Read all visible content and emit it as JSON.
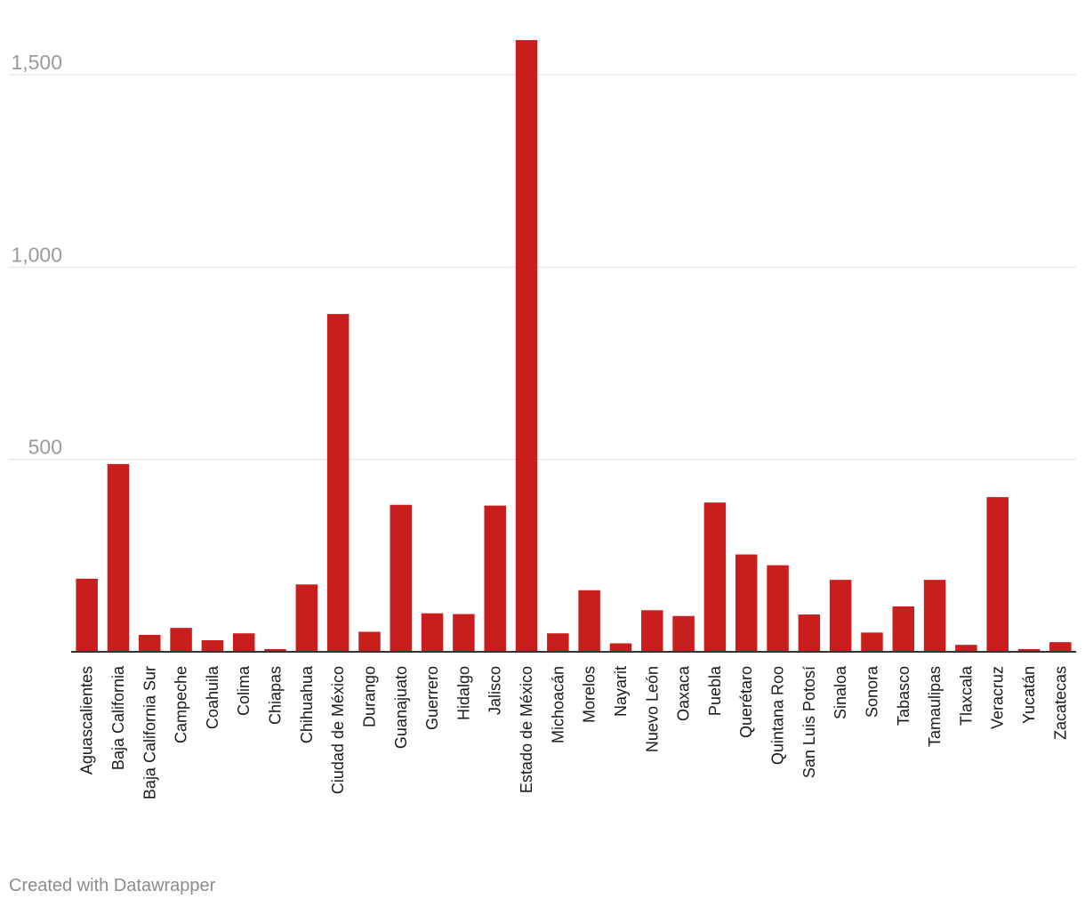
{
  "chart_data": {
    "type": "bar",
    "title": "",
    "xlabel": "",
    "ylabel": "",
    "ylim": [
      0,
      1600
    ],
    "yticks": [
      500,
      1000,
      1500
    ],
    "ytick_labels": [
      "500",
      "1,000",
      "1,500"
    ],
    "grid": true,
    "colors": {
      "bar": "#c81e1e"
    },
    "categories": [
      "Aguascalientes",
      "Baja California",
      "Baja California Sur",
      "Campeche",
      "Coahuila",
      "Colima",
      "Chiapas",
      "Chihuahua",
      "Ciudad de México",
      "Durango",
      "Guanajuato",
      "Guerrero",
      "Hidalgo",
      "Jalisco",
      "Estado de México",
      "Michoacán",
      "Morelos",
      "Nayarit",
      "Nuevo León",
      "Oaxaca",
      "Puebla",
      "Querétaro",
      "Quintana Roo",
      "San Luis Potosí",
      "Sinaloa",
      "Sonora",
      "Tabasco",
      "Tamaulipas",
      "Tlaxcala",
      "Veracruz",
      "Yucatán",
      "Zacatecas"
    ],
    "values": [
      190,
      488,
      44,
      62,
      30,
      48,
      7,
      175,
      878,
      52,
      382,
      100,
      98,
      380,
      1590,
      48,
      160,
      22,
      108,
      93,
      388,
      253,
      225,
      97,
      187,
      50,
      118,
      187,
      18,
      402,
      7,
      25
    ]
  },
  "footer": {
    "credit": "Created with Datawrapper"
  }
}
